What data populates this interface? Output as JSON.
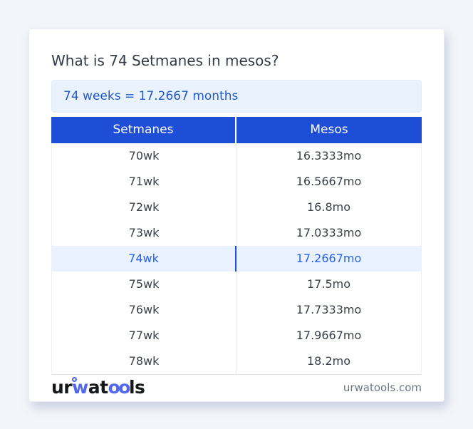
{
  "header": {
    "title": "What is 74 Setmanes in mesos?"
  },
  "result": {
    "text": "74 weeks = 17.2667 months"
  },
  "table": {
    "columns": [
      "Setmanes",
      "Mesos"
    ],
    "rows": [
      {
        "setmanes": "70wk",
        "mesos": "16.3333mo"
      },
      {
        "setmanes": "71wk",
        "mesos": "16.5667mo"
      },
      {
        "setmanes": "72wk",
        "mesos": "16.8mo"
      },
      {
        "setmanes": "73wk",
        "mesos": "17.0333mo"
      },
      {
        "setmanes": "74wk",
        "mesos": "17.2667mo"
      },
      {
        "setmanes": "75wk",
        "mesos": "17.5mo"
      },
      {
        "setmanes": "76wk",
        "mesos": "17.7333mo"
      },
      {
        "setmanes": "77wk",
        "mesos": "17.9667mo"
      },
      {
        "setmanes": "78wk",
        "mesos": "18.2mo"
      }
    ],
    "highlight_index": 4
  },
  "footer": {
    "logo": {
      "part_ur": "ur",
      "part_w": "w",
      "part_at": "at",
      "part_oo": "oo",
      "part_ls": "ls"
    },
    "domain": "urwatools.com"
  },
  "colors": {
    "page_bg": "#f3f5fa",
    "accent_blue": "#1e4dd6",
    "result_bg": "#eaf3fd",
    "result_text": "#2259cb",
    "highlight_bg": "#e9f2fe",
    "highlight_text": "#2563eb",
    "logo_blue": "#5468ef",
    "muted_text": "#6e7685"
  }
}
